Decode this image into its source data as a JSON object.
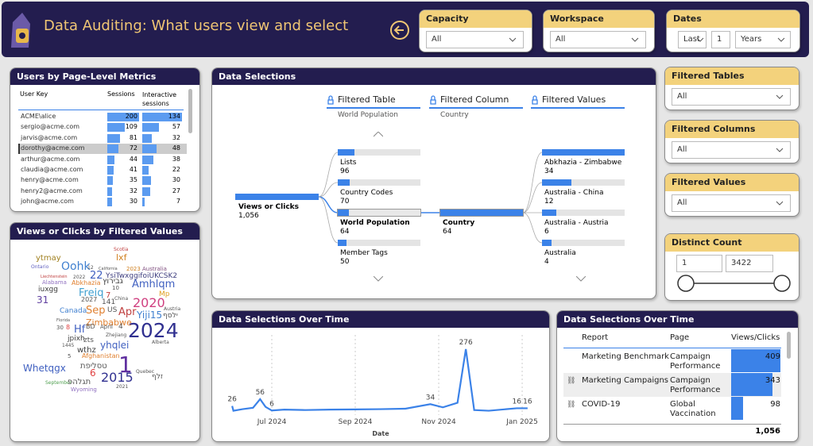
{
  "header": {
    "title": "Data Auditing: What users view and select"
  },
  "filters": [
    {
      "label": "Capacity",
      "value": "All"
    },
    {
      "label": "Workspace",
      "value": "All"
    }
  ],
  "dates": {
    "label": "Dates",
    "mode": "Last",
    "count": "1",
    "unit": "Years"
  },
  "users_table": {
    "title": "Users by Page-Level Metrics",
    "columns": [
      "User Key",
      "Sessions",
      "Interactive sessions"
    ],
    "rows": [
      [
        "ACME\\alice",
        200,
        134
      ],
      [
        "sergio@acme.com",
        109,
        57
      ],
      [
        "jarvis@acme.com",
        81,
        32
      ],
      [
        "dorothy@acme.com",
        72,
        48
      ],
      [
        "arthur@acme.com",
        44,
        38
      ],
      [
        "claudia@acme.com",
        41,
        22
      ],
      [
        "henry@acme.com",
        35,
        30
      ],
      [
        "henry2@acme.com",
        32,
        27
      ],
      [
        "john@acme.com",
        30,
        7
      ]
    ]
  },
  "word_cloud": {
    "title": "Views or Clicks by Filtered Values",
    "words": [
      "ytmay",
      "Scotia",
      "lxf",
      "Ontario",
      "Oohk",
      "12",
      "California",
      "2023",
      "Australia",
      "Liechtenstein",
      "2022",
      "22",
      "YsiTwxggifoiUKCSK2",
      "Alabama",
      "Abkhazia",
      "גבירוץ",
      "Amhlqm",
      "iuxgg",
      "10",
      "Freiq",
      "7",
      "Mp",
      "31",
      "2027",
      "China",
      "2020",
      "141",
      "Sep",
      "Canada",
      "US",
      "Apr",
      "Yiji15",
      "Austria",
      "ילסף",
      "2024",
      "Zimbabwe",
      "Florida",
      "30",
      "8",
      "Hf",
      "BD",
      "April",
      "4",
      "Zhejiang",
      "jpixh",
      "zts",
      "yhqlei",
      "1445",
      "Alberta",
      "wthz",
      "Afghanistan",
      "5",
      "1",
      "Whetqgx",
      "טסליפת",
      "6",
      "2015",
      "זלף",
      "Quebec",
      "September",
      "תגלהפ",
      "2021",
      "Wyoming"
    ]
  },
  "decomposition_tree": {
    "title": "Data Selections",
    "root": {
      "label": "Views or Clicks",
      "value": 1056,
      "value_label": "1,056"
    },
    "levels": [
      {
        "title": "Filtered Table",
        "selected": "World Population",
        "nodes": [
          {
            "label": "Lists",
            "value": 96
          },
          {
            "label": "Country Codes",
            "value": 70
          },
          {
            "label": "World Population",
            "value": 64
          },
          {
            "label": "Member Tags",
            "value": 50
          }
        ]
      },
      {
        "title": "Filtered Column",
        "selected": "Country",
        "nodes": [
          {
            "label": "Country",
            "value": 64
          }
        ]
      },
      {
        "title": "Filtered Values",
        "nodes": [
          {
            "label": "Abkhazia - Zimbabwe",
            "value": 34
          },
          {
            "label": "Australia - China",
            "value": 12
          },
          {
            "label": "Australia - Austria",
            "value": 6
          },
          {
            "label": "Australia",
            "value": 4
          }
        ]
      }
    ]
  },
  "side_filters": [
    {
      "label": "Filtered Tables",
      "value": "All"
    },
    {
      "label": "Filtered Columns",
      "value": "All"
    },
    {
      "label": "Filtered Values",
      "value": "All"
    }
  ],
  "distinct_count": {
    "label": "Distinct Count",
    "min": 1,
    "max": 3422
  },
  "line_chart": {
    "title": "Data Selections Over Time",
    "x_label": "Date",
    "color": "#3b82e8",
    "x": [
      6.05,
      6.08,
      6.3,
      6.55,
      6.72,
      6.85,
      7.0,
      7.3,
      7.8,
      8.4,
      9.0,
      9.6,
      10.2,
      10.8,
      11.1,
      11.45,
      11.65,
      11.85,
      12.2,
      12.87,
      13.13
    ],
    "values": [
      26,
      5,
      12,
      18,
      56,
      22,
      6,
      10,
      8,
      10,
      11,
      12,
      14,
      34,
      20,
      40,
      276,
      8,
      5,
      16,
      16
    ],
    "xlim": [
      6,
      13.3
    ],
    "ylim": [
      0,
      300
    ],
    "xticks": [
      {
        "value": 7,
        "label": "Jul 2024"
      },
      {
        "value": 9,
        "label": "Sep 2024"
      },
      {
        "value": 11,
        "label": "Nov 2024"
      },
      {
        "value": 13,
        "label": "Jan 2025"
      }
    ]
  },
  "report_table": {
    "title": "Data Selections Over Time",
    "columns": [
      "Report",
      "Page",
      "Views/Clicks"
    ],
    "rows": [
      [
        "Marketing Benchmark",
        "Campaign Performance",
        409
      ],
      [
        "Marketing Campaigns",
        "Campaign Performance",
        343
      ],
      [
        "COVID-19",
        "Global Vaccination",
        98
      ]
    ],
    "total": {
      "value": 1056,
      "label": "1,056"
    }
  }
}
